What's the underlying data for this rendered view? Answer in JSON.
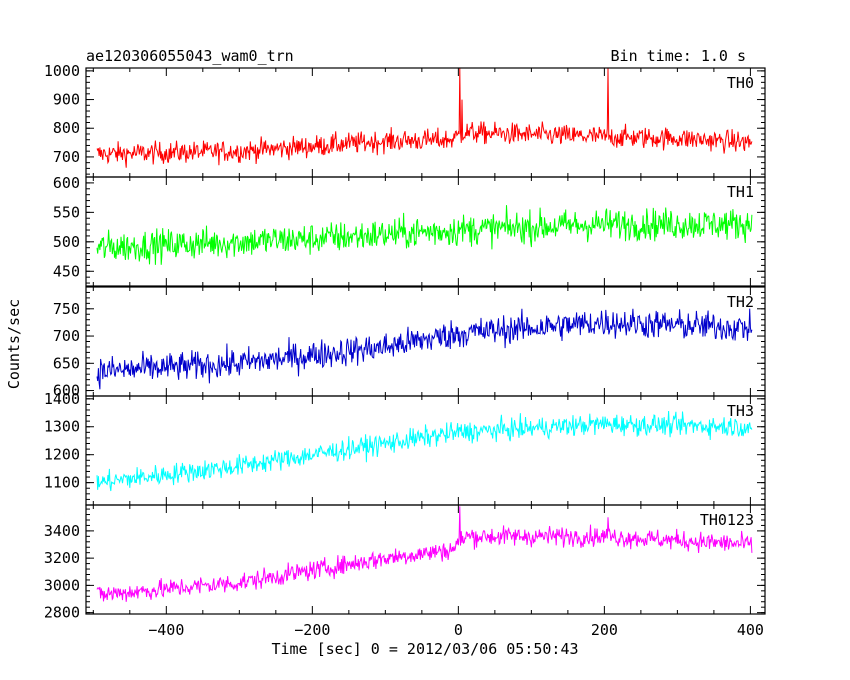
{
  "header": {
    "title": "ae120306055043_wam0_trn",
    "bin_time": "Bin time: 1.0 s"
  },
  "chart_data": {
    "type": "line",
    "xlabel": "Time [sec] 0 = 2012/03/06 05:50:43",
    "ylabel": "Counts/sec",
    "xlim": [
      -510,
      420
    ],
    "x_ticks": [
      -400,
      -200,
      0,
      200,
      400
    ],
    "x_tick_labels": [
      "−400",
      "−200",
      "0",
      "200",
      "400"
    ],
    "panels": [
      {
        "name": "TH0",
        "color": "#ff0000",
        "ylim": [
          630,
          1010
        ],
        "y_ticks": [
          700,
          800,
          900,
          1000
        ],
        "trend": [
          [
            -495,
            710
          ],
          [
            -300,
            720
          ],
          [
            -100,
            755
          ],
          [
            -10,
            760
          ],
          [
            10,
            785
          ],
          [
            200,
            770
          ],
          [
            300,
            765
          ],
          [
            400,
            750
          ]
        ],
        "noise": 45,
        "spikes": [
          {
            "x": 2,
            "y": 1010
          },
          {
            "x": 5,
            "y": 900
          },
          {
            "x": 205,
            "y": 1010
          }
        ]
      },
      {
        "name": "TH1",
        "color": "#00ff00",
        "ylim": [
          425,
          610
        ],
        "y_ticks": [
          450,
          500,
          550,
          600
        ],
        "trend": [
          [
            -495,
            490
          ],
          [
            -200,
            505
          ],
          [
            0,
            520
          ],
          [
            200,
            530
          ],
          [
            400,
            530
          ]
        ],
        "noise": 32,
        "spikes": []
      },
      {
        "name": "TH2",
        "color": "#0000cc",
        "ylim": [
          590,
          790
        ],
        "y_ticks": [
          600,
          650,
          700,
          750
        ],
        "trend": [
          [
            -495,
            635
          ],
          [
            -300,
            650
          ],
          [
            -100,
            680
          ],
          [
            0,
            705
          ],
          [
            200,
            725
          ],
          [
            400,
            715
          ]
        ],
        "noise": 32,
        "spikes": []
      },
      {
        "name": "TH3",
        "color": "#00ffff",
        "ylim": [
          1020,
          1410
        ],
        "y_ticks": [
          1100,
          1200,
          1300,
          1400
        ],
        "trend": [
          [
            -495,
            1100
          ],
          [
            -300,
            1160
          ],
          [
            -100,
            1240
          ],
          [
            0,
            1280
          ],
          [
            200,
            1310
          ],
          [
            400,
            1300
          ]
        ],
        "noise": 45,
        "spikes": []
      },
      {
        "name": "TH0123",
        "color": "#ff00ff",
        "ylim": [
          2790,
          3590
        ],
        "y_ticks": [
          2800,
          3000,
          3200,
          3400
        ],
        "trend": [
          [
            -495,
            2930
          ],
          [
            -300,
            3020
          ],
          [
            -100,
            3200
          ],
          [
            -10,
            3260
          ],
          [
            10,
            3360
          ],
          [
            200,
            3360
          ],
          [
            400,
            3300
          ]
        ],
        "noise": 85,
        "spikes": [
          {
            "x": 2,
            "y": 3580
          },
          {
            "x": 205,
            "y": 3500
          }
        ]
      }
    ]
  }
}
